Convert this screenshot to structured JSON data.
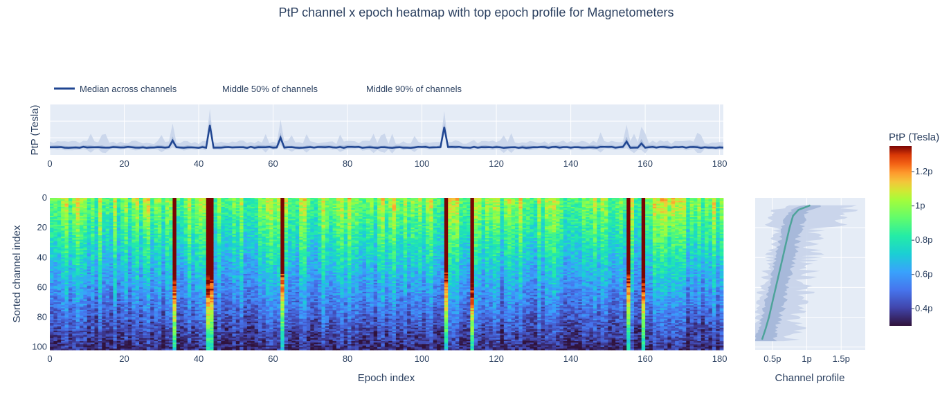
{
  "figure": {
    "title": "PtP channel x epoch heatmap with top epoch profile for Magnetometers"
  },
  "legend": {
    "items": [
      {
        "label": "Median across channels",
        "color": "#1f4591"
      },
      {
        "label": "Middle 50% of channels"
      },
      {
        "label": "Middle 90% of channels"
      }
    ]
  },
  "colors": {
    "median_line": "#1f4591",
    "band50": "#9db1d6",
    "band90": "#c7d3ea",
    "profile_line": "#4ea39a",
    "plot_bg": "#e5ecf6",
    "grid": "#ffffff"
  },
  "chart_data": [
    {
      "type": "line",
      "name": "top-epoch-profile",
      "ylabel": "PtP (Tesla)",
      "xlim": [
        0,
        181
      ],
      "x_ticks": [
        "0",
        "20",
        "40",
        "60",
        "80",
        "100",
        "120",
        "140",
        "160",
        "180"
      ],
      "spike_epochs": [
        33,
        43,
        62,
        106,
        155,
        159
      ],
      "median_typical": 0.5,
      "median_spikes": [
        0.85,
        1.65,
        1.0,
        1.55,
        0.8,
        0.7
      ],
      "series": [
        {
          "name": "Median across channels"
        },
        {
          "name": "Middle 50% of channels"
        },
        {
          "name": "Middle 90% of channels"
        }
      ]
    },
    {
      "type": "heatmap",
      "name": "channel-epoch-heatmap",
      "xlabel": "Epoch index",
      "ylabel": "Sorted channel index",
      "x_range": [
        0,
        181
      ],
      "y_range": [
        0,
        102
      ],
      "x_ticks": [
        "0",
        "20",
        "40",
        "60",
        "80",
        "100",
        "120",
        "140",
        "160",
        "180"
      ],
      "y_ticks": [
        "0",
        "20",
        "40",
        "60",
        "80",
        "100"
      ],
      "colorscale": "Turbo",
      "value_range": [
        0.3,
        1.35
      ],
      "high_epochs": [
        33,
        42,
        43,
        62,
        106,
        113,
        155,
        159
      ],
      "colorbar": {
        "title": "PtP (Tesla)",
        "ticks": [
          "1.2p",
          "1p",
          "0.8p",
          "0.6p",
          "0.4p"
        ],
        "tick_values": [
          1.2,
          1.0,
          0.8,
          0.6,
          0.4
        ]
      }
    },
    {
      "type": "line",
      "name": "channel-profile",
      "xlabel": "Channel profile",
      "xlim": [
        0.25,
        1.85
      ],
      "x_ticks": [
        "0.5p",
        "1p",
        "1.5p"
      ],
      "x_tick_values": [
        0.5,
        1.0,
        1.5
      ],
      "y_range": [
        0,
        102
      ],
      "median_points": [
        [
          1.05,
          5
        ],
        [
          0.88,
          8
        ],
        [
          0.8,
          12
        ],
        [
          0.75,
          20
        ],
        [
          0.7,
          30
        ],
        [
          0.65,
          40
        ],
        [
          0.6,
          50
        ],
        [
          0.55,
          60
        ],
        [
          0.5,
          70
        ],
        [
          0.45,
          80
        ],
        [
          0.4,
          88
        ],
        [
          0.35,
          95
        ]
      ]
    }
  ]
}
